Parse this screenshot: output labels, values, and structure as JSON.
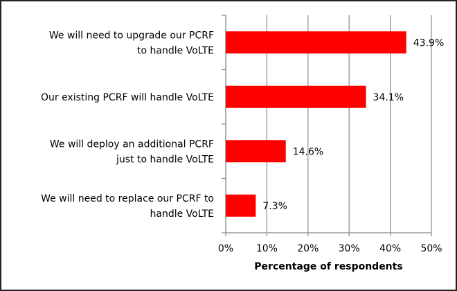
{
  "chart_data": {
    "type": "bar",
    "orientation": "horizontal",
    "categories": [
      [
        "We will need to upgrade our PCRF",
        "to handle VoLTE"
      ],
      [
        "Our existing PCRF will handle VoLTE"
      ],
      [
        "We will deploy an additional PCRF",
        "just to handle VoLTE"
      ],
      [
        "We will need to replace our PCRF to",
        "handle VoLTE"
      ]
    ],
    "values": [
      43.9,
      34.1,
      14.6,
      7.3
    ],
    "data_labels": [
      "43.9%",
      "34.1%",
      "14.6%",
      "7.3%"
    ],
    "xlabel": "Percentage of respondents",
    "ylabel": "",
    "xlim": [
      0,
      50
    ],
    "xticks": [
      0,
      10,
      20,
      30,
      40,
      50
    ],
    "xtick_labels": [
      "0%",
      "10%",
      "20%",
      "30%",
      "40%",
      "50%"
    ],
    "grid": "vertical",
    "legend": "none",
    "bar_color": "#ff0000"
  }
}
